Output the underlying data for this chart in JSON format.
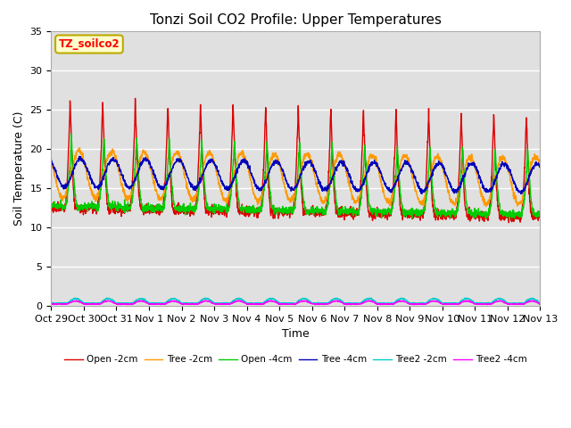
{
  "title": "Tonzi Soil CO2 Profile: Upper Temperatures",
  "xlabel": "Time",
  "ylabel": "Soil Temperature (C)",
  "ylim": [
    0,
    35
  ],
  "yticks": [
    0,
    5,
    10,
    15,
    20,
    25,
    30,
    35
  ],
  "dataset_label": "TZ_soilco2",
  "background_color": "#ffffff",
  "plot_bg_color": "#e0e0e0",
  "legend_entries": [
    "Open -2cm",
    "Tree -2cm",
    "Open -4cm",
    "Tree -4cm",
    "Tree2 -2cm",
    "Tree2 -4cm"
  ],
  "line_colors": [
    "#dd0000",
    "#ff9900",
    "#00cc00",
    "#0000bb",
    "#00cccc",
    "#ff00ff"
  ],
  "x_tick_labels": [
    "Oct 29",
    "Oct 30",
    "Oct 31",
    "Nov 1",
    "Nov 2",
    "Nov 3",
    "Nov 4",
    "Nov 5",
    "Nov 6",
    "Nov 7",
    "Nov 8",
    "Nov 9",
    "Nov 10",
    "Nov 11",
    "Nov 12",
    "Nov 13"
  ],
  "n_days": 15,
  "points_per_day": 144
}
